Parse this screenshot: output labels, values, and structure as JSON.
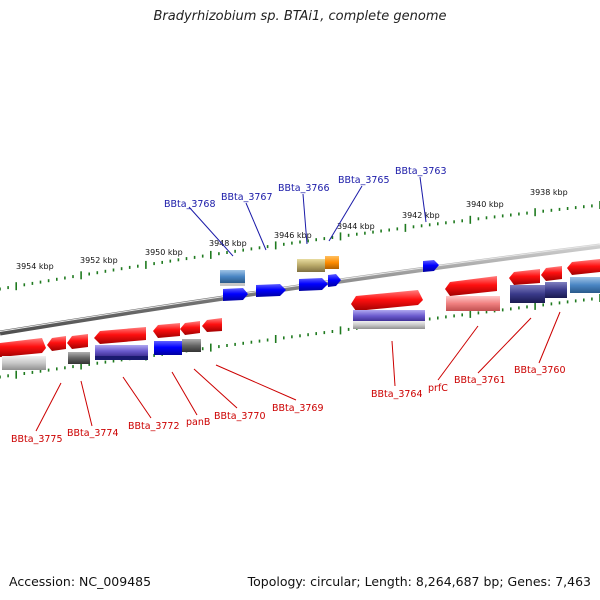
{
  "title": "Bradyrhizobium sp. BTAi1, complete genome",
  "accession": "Accession: NC_009485",
  "topology": "Topology: circular; Length: 8,264,687 bp; Genes: 7,463",
  "colors": {
    "backbone": "#808080",
    "tick": "#1f7a1f",
    "top_label": "#1a1aa8",
    "bottom_label": "#c00000"
  },
  "scale_labels": [
    "3954 kbp",
    "3952 kbp",
    "3950 kbp",
    "3948 kbp",
    "3946 kbp",
    "3944 kbp",
    "3942 kbp",
    "3940 kbp",
    "3938 kbp"
  ],
  "top_gene_labels": [
    "BBta_3768",
    "BBta_3767",
    "BBta_3766",
    "BBta_3765",
    "BBta_3763"
  ],
  "bottom_gene_labels": [
    "BBta_3775",
    "BBta_3774",
    "BBta_3772",
    "panB",
    "BBta_3770",
    "BBta_3769",
    "BBta_3764",
    "prfC",
    "BBta_3761",
    "BBta_3760"
  ]
}
